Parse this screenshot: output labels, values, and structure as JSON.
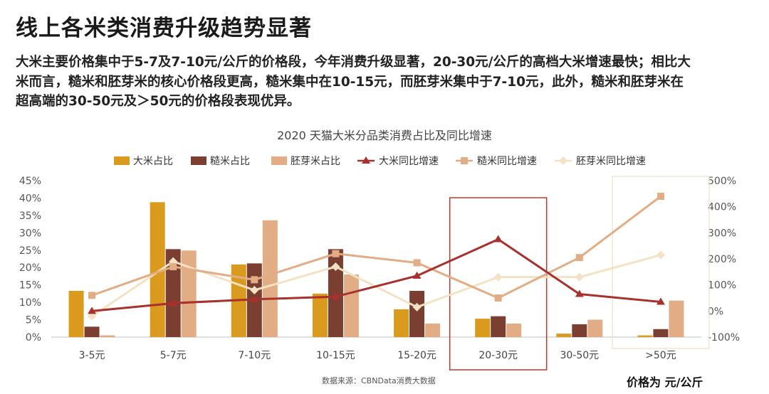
{
  "page": {
    "title": "线上各米类消费升级趋势显著",
    "summary_lines": [
      "大米主要价格集中于5-7及7-10元/公斤的价格段，今年消费升级显著，20-30元/公斤的高档大米增速最快；相比大",
      "米而言，糙米和胚芽米的核心价格段更高，糙米集中在10-15元，而胚芽米集中于7-10元，此外，糙米和胚芽米在",
      "超高端的30-50元及＞50元的价格段表现优异。"
    ],
    "source": "数据来源：CBNData消费大数据",
    "unit_note": "价格为 元/公斤"
  },
  "chart_data": {
    "type": "bar",
    "title": "2020 天猫大米分品类消费占比及同比增速",
    "categories": [
      "3-5元",
      "5-7元",
      "7-10元",
      "10-15元",
      "15-20元",
      "20-30元",
      "30-50元",
      ">50元"
    ],
    "y_left": {
      "ticks": [
        "0%",
        "5%",
        "10%",
        "15%",
        "20%",
        "25%",
        "30%",
        "35%",
        "40%",
        "45%"
      ],
      "ylim": [
        0,
        45
      ]
    },
    "y_right": {
      "ticks": [
        "-100%",
        "0%",
        "100%",
        "200%",
        "300%",
        "400%",
        "500%"
      ],
      "ylim": [
        -100,
        500
      ]
    },
    "bar_series": [
      {
        "name": "大米占比",
        "color": "#d99a1e",
        "values": [
          13.3,
          38.8,
          20.9,
          12.5,
          8.0,
          5.3,
          1.0,
          0.5
        ]
      },
      {
        "name": "糙米占比",
        "color": "#7b3f32",
        "values": [
          3.0,
          25.3,
          21.2,
          25.3,
          13.3,
          6.0,
          3.7,
          2.3
        ]
      },
      {
        "name": "胚芽米占比",
        "color": "#e2ad84",
        "values": [
          0.5,
          24.9,
          33.6,
          18.0,
          3.9,
          3.9,
          5.0,
          10.5
        ]
      }
    ],
    "line_series": [
      {
        "name": "大米同比增速",
        "color": "#a8302d",
        "marker": "triangle",
        "values": [
          0,
          30,
          45,
          55,
          135,
          275,
          65,
          35
        ]
      },
      {
        "name": "糙米同比增速",
        "color": "#e2ad84",
        "marker": "square",
        "values": [
          60,
          170,
          120,
          220,
          185,
          50,
          205,
          440
        ]
      },
      {
        "name": "胚芽米同比增速",
        "color": "#f3e2c3",
        "marker": "diamond",
        "values": [
          -20,
          190,
          80,
          170,
          15,
          130,
          130,
          215
        ]
      }
    ],
    "legend_position": "top",
    "highlight_boxes": [
      {
        "category": "20-30元",
        "color": "#c0392b"
      },
      {
        "category": ">50元",
        "color": "#f0dfc3"
      }
    ]
  }
}
